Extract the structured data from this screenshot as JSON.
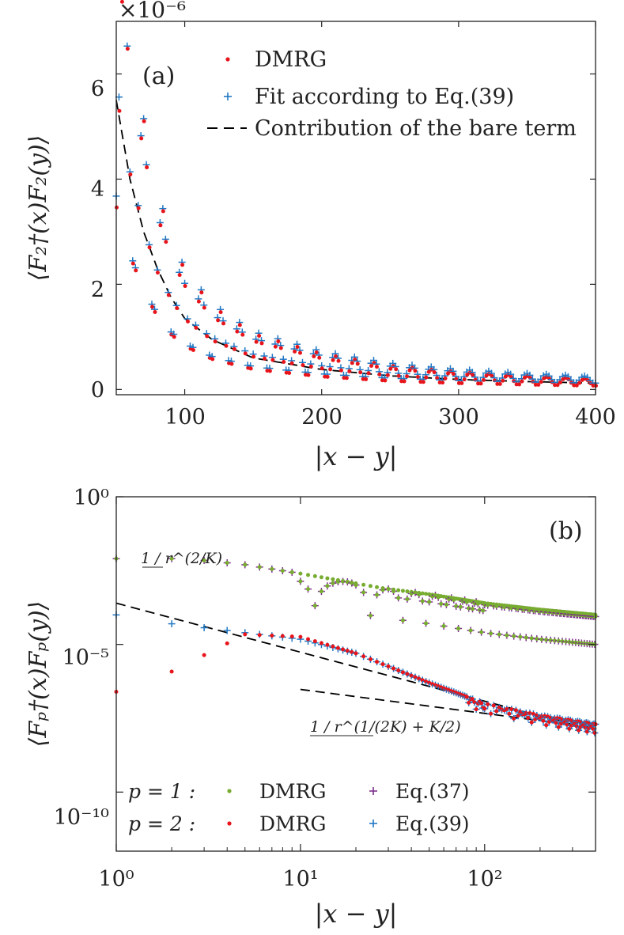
{
  "panel_a": {
    "panel_label": "(a)",
    "exponent_label": "×10⁻⁶",
    "ylabel": "⟨F₂†(x)F₂(y)⟩",
    "xlabel": "|x − y|",
    "yticks": [
      "0",
      "2",
      "4",
      "6"
    ],
    "xticks": [
      "100",
      "200",
      "300",
      "400"
    ],
    "legend": [
      "DMRG",
      "Fit according to Eq.(39)",
      "Contribution of the bare term"
    ]
  },
  "panel_b": {
    "panel_label": "(b)",
    "ylabel": "⟨Fₚ†(x)Fₚ(y)⟩",
    "xlabel": "|x − y|",
    "xticks": [
      "10⁰",
      "10¹",
      "10²"
    ],
    "yticks": [
      "10⁰",
      "10⁻⁵",
      "10⁻¹⁰"
    ],
    "annotation_1": "1 / r^(2/K)",
    "annotation_2": "1 / r^(1/(2K) + K/2)",
    "legend": {
      "p1_label": "p = 1 :",
      "p2_label": "p = 2 :",
      "dmrg": "DMRG",
      "eq37": "Eq.(37)",
      "eq39": "Eq.(39)"
    }
  },
  "colors": {
    "dmrg_p2": "#e8141b",
    "fit": "#1f77c4",
    "dmrg_p1": "#77ac30",
    "eq37": "#7e2f8e",
    "bare": "#000000"
  },
  "chart_data": [
    {
      "type": "scatter",
      "panel": "(a)",
      "xlabel": "|x − y|",
      "ylabel": "⟨F₂†(x)F₂(y)⟩",
      "y_multiplier": "1e-6",
      "xlim": [
        50,
        400
      ],
      "ylim": [
        -0.1,
        7.0
      ],
      "grid": false,
      "legend_position": "top-right",
      "series": [
        {
          "name": "DMRG",
          "marker": "dot",
          "color": "#e8141b",
          "x": [
            50,
            60,
            70,
            80,
            90,
            100,
            120,
            150,
            200,
            250,
            300,
            350,
            400
          ],
          "y": [
            6.3,
            4.6,
            3.4,
            2.5,
            1.9,
            1.5,
            1.05,
            0.7,
            0.45,
            0.3,
            0.22,
            0.17,
            0.13
          ]
        },
        {
          "name": "Fit according to Eq.(39)",
          "marker": "plus",
          "color": "#1f77c4",
          "x": [
            50,
            60,
            70,
            80,
            90,
            100,
            120,
            150,
            200,
            250,
            300,
            350,
            400
          ],
          "y": [
            6.6,
            4.6,
            3.4,
            2.5,
            1.9,
            1.5,
            1.05,
            0.7,
            0.45,
            0.3,
            0.22,
            0.17,
            0.13
          ]
        },
        {
          "name": "Contribution of the bare term",
          "style": "dashed",
          "color": "#000000",
          "x": [
            50,
            60,
            70,
            80,
            90,
            100,
            120,
            150,
            200,
            250,
            300,
            350,
            400
          ],
          "y": [
            5.5,
            4.0,
            3.0,
            2.3,
            1.75,
            1.35,
            0.95,
            0.6,
            0.38,
            0.26,
            0.19,
            0.15,
            0.12
          ]
        }
      ]
    },
    {
      "type": "scatter",
      "panel": "(b)",
      "xlabel": "|x − y|",
      "ylabel": "⟨Fₚ†(x)Fₚ(y)⟩",
      "xscale": "log",
      "yscale": "log",
      "xlim": [
        1,
        400
      ],
      "ylim": [
        1e-12,
        1
      ],
      "grid": false,
      "legend_position": "bottom-left",
      "series": [
        {
          "name": "DMRG",
          "group": "p = 1",
          "marker": "dot",
          "color": "#77ac30",
          "x": [
            1,
            2,
            3,
            5,
            10,
            16,
            28,
            50,
            100,
            200,
            400
          ],
          "y": [
            0.008,
            0.008,
            0.007,
            0.005,
            0.0025,
            0.0015,
            0.0008,
            0.0005,
            0.00025,
            0.00015,
            0.0001
          ]
        },
        {
          "name": "Eq.(37)",
          "group": "p = 1",
          "marker": "plus",
          "color": "#7e2f8e",
          "x": [
            1,
            2,
            3,
            5,
            10,
            16,
            28,
            50,
            100,
            200,
            400
          ],
          "y": [
            0.008,
            0.008,
            0.007,
            0.005,
            0.0025,
            0.0015,
            0.0008,
            0.0005,
            0.00025,
            0.00015,
            0.0001
          ]
        },
        {
          "name": "DMRG",
          "group": "p = 2",
          "marker": "dot",
          "color": "#e8141b",
          "x": [
            1,
            2,
            5,
            10,
            20,
            50,
            100,
            200,
            400
          ],
          "y": [
            2.5e-07,
            1.2e-06,
            2.2e-05,
            1.8e-05,
            5e-06,
            5e-07,
            1e-07,
            4e-08,
            2e-08
          ]
        },
        {
          "name": "Eq.(39)",
          "group": "p = 2",
          "marker": "plus",
          "color": "#1f77c4",
          "x": [
            1,
            2,
            5,
            10,
            20,
            50,
            100,
            200,
            400
          ],
          "y": [
            0.0001,
            5e-05,
            2.5e-05,
            1.5e-05,
            5e-06,
            5e-07,
            1e-07,
            4e-08,
            2e-08
          ]
        },
        {
          "name": "1/r^(2/K)",
          "style": "dashed",
          "color": "#000000",
          "x": [
            1,
            400
          ],
          "y": [
            0.00025,
            1.2e-08
          ]
        },
        {
          "name": "1/r^(1/(2K)+K/2)",
          "style": "dashed",
          "color": "#000000",
          "x": [
            10,
            400
          ],
          "y": [
            3e-07,
            1.5e-08
          ]
        }
      ]
    }
  ]
}
